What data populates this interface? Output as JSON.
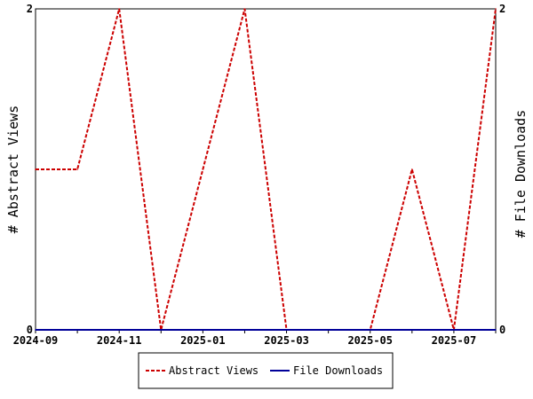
{
  "chart_data": {
    "type": "line",
    "x": [
      "2024-09",
      "2024-10",
      "2024-11",
      "2024-12",
      "2025-01",
      "2025-02",
      "2025-03",
      "2025-04",
      "2025-05",
      "2025-06",
      "2025-07",
      "2025-08"
    ],
    "x_tick_labels": [
      "2024-09",
      "2024-11",
      "2025-01",
      "2025-03",
      "2025-05",
      "2025-07"
    ],
    "series": [
      {
        "name": "Abstract Views",
        "values": [
          1,
          1,
          2,
          0,
          1,
          2,
          0,
          0,
          0,
          1,
          0,
          2
        ],
        "color": "#cc0000",
        "style": "dashed",
        "axis": "left"
      },
      {
        "name": "File Downloads",
        "values": [
          0,
          0,
          0,
          0,
          0,
          0,
          0,
          0,
          0,
          0,
          0,
          0
        ],
        "color": "#000099",
        "style": "solid",
        "axis": "right"
      }
    ],
    "ylabel": "# Abstract Views",
    "y2label": "# File Downloads",
    "ylim": [
      0,
      2
    ],
    "y2lim": [
      0,
      2
    ],
    "y_tick_labels": [
      "0",
      "2"
    ],
    "y2_tick_labels": [
      "0",
      "2"
    ],
    "grid": false,
    "legend_position": "bottom"
  }
}
